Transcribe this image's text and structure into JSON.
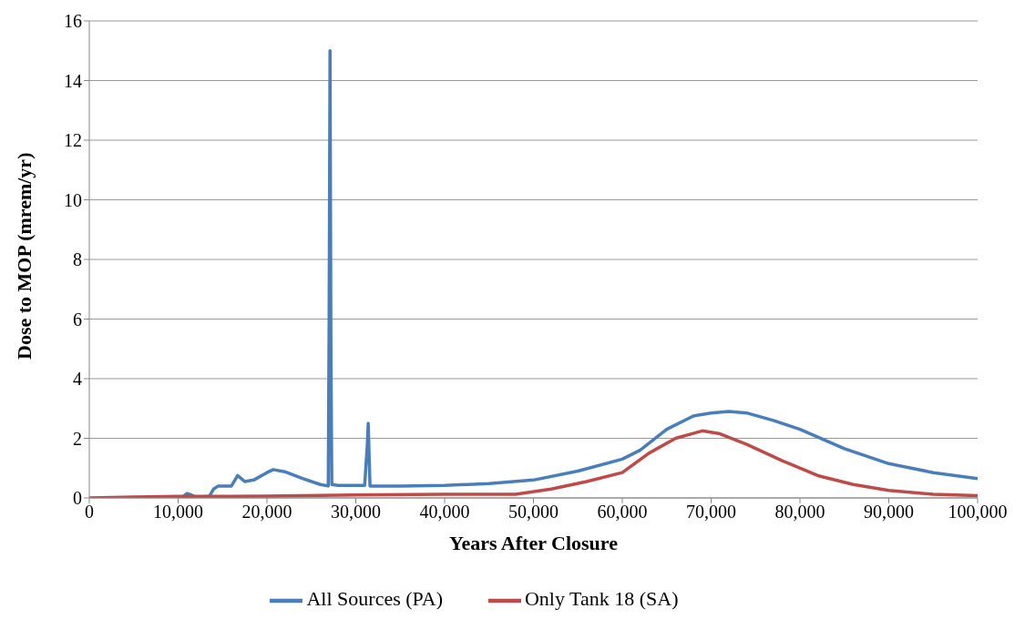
{
  "chart_data": {
    "type": "line",
    "xlabel": "Years After Closure",
    "ylabel": "Dose to MOP (mrem/yr)",
    "xlim": [
      0,
      100000
    ],
    "xticks": [
      {
        "value": 0,
        "label": "0"
      },
      {
        "value": 10000,
        "label": "10,000"
      },
      {
        "value": 20000,
        "label": "20,000"
      },
      {
        "value": 30000,
        "label": "30,000"
      },
      {
        "value": 40000,
        "label": "40,000"
      },
      {
        "value": 50000,
        "label": "50,000"
      },
      {
        "value": 60000,
        "label": "60,000"
      },
      {
        "value": 70000,
        "label": "70,000"
      },
      {
        "value": 80000,
        "label": "80,000"
      },
      {
        "value": 90000,
        "label": "90,000"
      },
      {
        "value": 100000,
        "label": "100,000"
      }
    ],
    "ylim": [
      0,
      16
    ],
    "yticks": [
      0,
      2,
      4,
      6,
      8,
      10,
      12,
      14,
      16
    ],
    "grid": "y",
    "legend": "bottom",
    "marker": "none",
    "line_style": "solid",
    "series": [
      {
        "name": "All Sources (PA)",
        "color": "#4a7ebb",
        "x": [
          10500,
          11000,
          11500,
          12000,
          13500,
          14000,
          14500,
          16000,
          16700,
          17500,
          18500,
          20000,
          20700,
          22000,
          24000,
          26000,
          26900,
          27000,
          27100,
          27200,
          27300,
          28000,
          31000,
          31300,
          31400,
          31600,
          35000,
          40000,
          45000,
          50000,
          55000,
          60000,
          62000,
          65000,
          68000,
          70000,
          72000,
          74000,
          77000,
          80000,
          85000,
          90000,
          95000,
          100000
        ],
        "values": [
          0.02,
          0.15,
          0.1,
          0.02,
          0.05,
          0.3,
          0.4,
          0.4,
          0.75,
          0.55,
          0.6,
          0.85,
          0.95,
          0.88,
          0.65,
          0.45,
          0.4,
          6,
          15,
          5,
          0.45,
          0.42,
          0.42,
          1.8,
          2.5,
          0.4,
          0.4,
          0.42,
          0.48,
          0.6,
          0.9,
          1.3,
          1.6,
          2.3,
          2.75,
          2.85,
          2.9,
          2.85,
          2.6,
          2.3,
          1.65,
          1.15,
          0.85,
          0.65
        ]
      },
      {
        "name": "Only Tank 18 (SA)",
        "color": "#be4b48",
        "x": [
          0,
          5000,
          10000,
          20000,
          30000,
          40000,
          48000,
          52000,
          56000,
          60000,
          63000,
          66000,
          69000,
          71000,
          74000,
          78000,
          82000,
          86000,
          90000,
          95000,
          100000
        ],
        "values": [
          0,
          0.03,
          0.05,
          0.06,
          0.1,
          0.12,
          0.12,
          0.3,
          0.55,
          0.85,
          1.5,
          2.0,
          2.25,
          2.15,
          1.8,
          1.25,
          0.75,
          0.45,
          0.25,
          0.12,
          0.08
        ]
      }
    ]
  }
}
